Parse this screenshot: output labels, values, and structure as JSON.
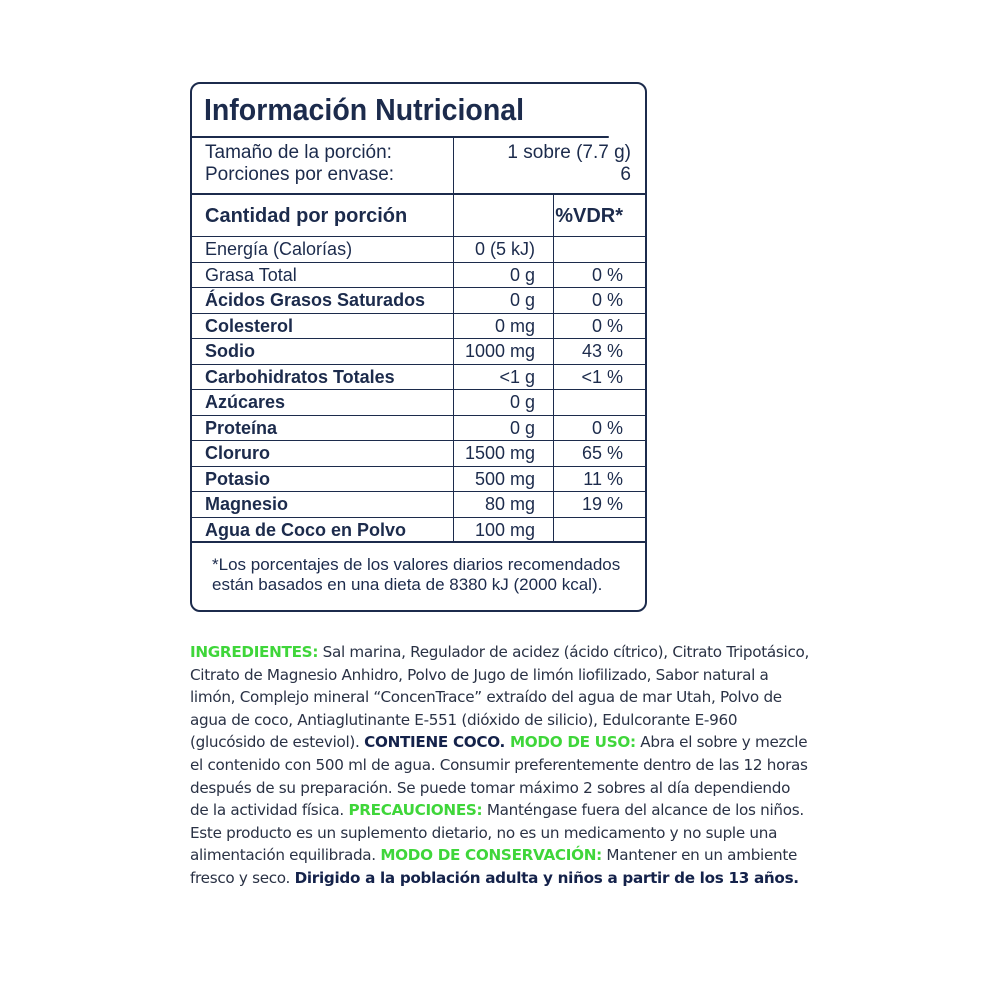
{
  "label": {
    "title": "Información Nutricional",
    "serving_size_label": "Tamaño de la porción:",
    "serving_size_value": "1 sobre (7.7 g)",
    "servings_label": "Porciones por envase:",
    "servings_value": "6",
    "header_amount": "Cantidad por porción",
    "header_vdr": "%VDR*",
    "rows": [
      {
        "name": "Energía (Calorías)",
        "amount": "0  (5 kJ)",
        "vdr": ""
      },
      {
        "name": "Grasa Total",
        "amount": "0 g",
        "vdr": "0 %"
      },
      {
        "name": "Ácidos Grasos Saturados",
        "amount": "0 g",
        "vdr": "0 %"
      },
      {
        "name": "Colesterol",
        "amount": "0 mg",
        "vdr": "0 %"
      },
      {
        "name": "Sodio",
        "amount": "1000 mg",
        "vdr": "43 %"
      },
      {
        "name": "Carbohidratos Totales",
        "amount": "<1 g",
        "vdr": "<1 %"
      },
      {
        "name": "Azúcares",
        "amount": "0 g",
        "vdr": ""
      },
      {
        "name": "Proteína",
        "amount": "0 g",
        "vdr": "0 %"
      },
      {
        "name": "Cloruro",
        "amount": "1500 mg",
        "vdr": "65 %"
      },
      {
        "name": "Potasio",
        "amount": "500 mg",
        "vdr": "11 %"
      },
      {
        "name": "Magnesio",
        "amount": "80 mg",
        "vdr": "19 %"
      },
      {
        "name": "Agua de Coco en Polvo",
        "amount": "100 mg",
        "vdr": ""
      }
    ],
    "footnote": "*Los porcentajes de los valores diarios recomendados están basados en una dieta de 8380 kJ (2000 kcal)."
  },
  "info": {
    "ingredients_label": "INGREDIENTES:",
    "ingredients_text": " Sal marina, Regulador de acidez  (ácido cítrico), Citrato Tripotásico, Citrato de Magnesio Anhidro, Polvo de Jugo de limón liofilizado, Sabor natural a limón, Complejo mineral “ConcenTrace” extraído del agua de mar Utah, Polvo de agua de coco, Antiaglutinante E-551 (dióxido de silicio), Edulcorante E-960 (glucósido de esteviol). ",
    "contains": "CONTIENE COCO.",
    "usage_label": " MODO DE USO:",
    "usage_text": " Abra el sobre y mezcle el contenido con 500 ml de agua. Consumir preferentemente dentro de las 12 horas después de su preparación. Se puede tomar máximo 2 sobres al día dependiendo de la actividad física. ",
    "precautions_label": "PRECAUCIONES:",
    "precautions_text": " Manténgase fuera del alcance de los niños. Este producto es un suplemento dietario, no es un medicamento y no suple una alimentación equilibrada. ",
    "storage_label": "MODO DE CONSERVACIÓN:",
    "storage_text": " Mantener en un ambiente fresco y seco. ",
    "audience": "Dirigido a la población adulta y niños a partir de los 13 años."
  },
  "colors": {
    "navy": "#1c2b4c",
    "green": "#3fd63a"
  }
}
